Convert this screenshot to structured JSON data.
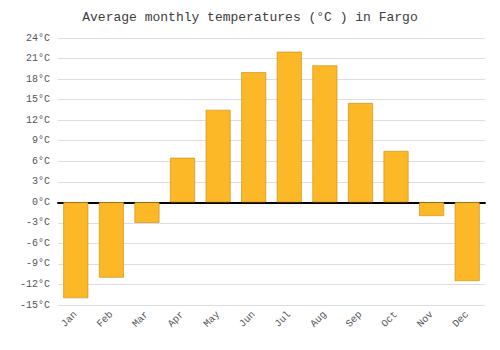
{
  "chart_data": {
    "type": "bar",
    "title": "Average monthly temperatures (°C ) in Fargo",
    "categories": [
      "Jan",
      "Feb",
      "Mar",
      "Apr",
      "May",
      "Jun",
      "Jul",
      "Aug",
      "Sep",
      "Oct",
      "Nov",
      "Dec"
    ],
    "values": [
      -14,
      -11,
      -3,
      6.5,
      13.5,
      19,
      22,
      20,
      14.5,
      7.5,
      -2,
      -11.5
    ],
    "color": "#FDB827",
    "ylim": [
      -15,
      24
    ],
    "yticks": [
      {
        "value": -15,
        "label": "-15°C"
      },
      {
        "value": -12,
        "label": "-12°C"
      },
      {
        "value": -9,
        "label": "-9°C"
      },
      {
        "value": -6,
        "label": "-6°C"
      },
      {
        "value": -3,
        "label": "-3°C"
      },
      {
        "value": 0,
        "label": "0°C"
      },
      {
        "value": 3,
        "label": "3°C"
      },
      {
        "value": 6,
        "label": "6°C"
      },
      {
        "value": 9,
        "label": "9°C"
      },
      {
        "value": 12,
        "label": "12°C"
      },
      {
        "value": 15,
        "label": "15°C"
      },
      {
        "value": 18,
        "label": "18°C"
      },
      {
        "value": 21,
        "label": "21°C"
      },
      {
        "value": 24,
        "label": "24°C"
      }
    ],
    "grid": true
  }
}
